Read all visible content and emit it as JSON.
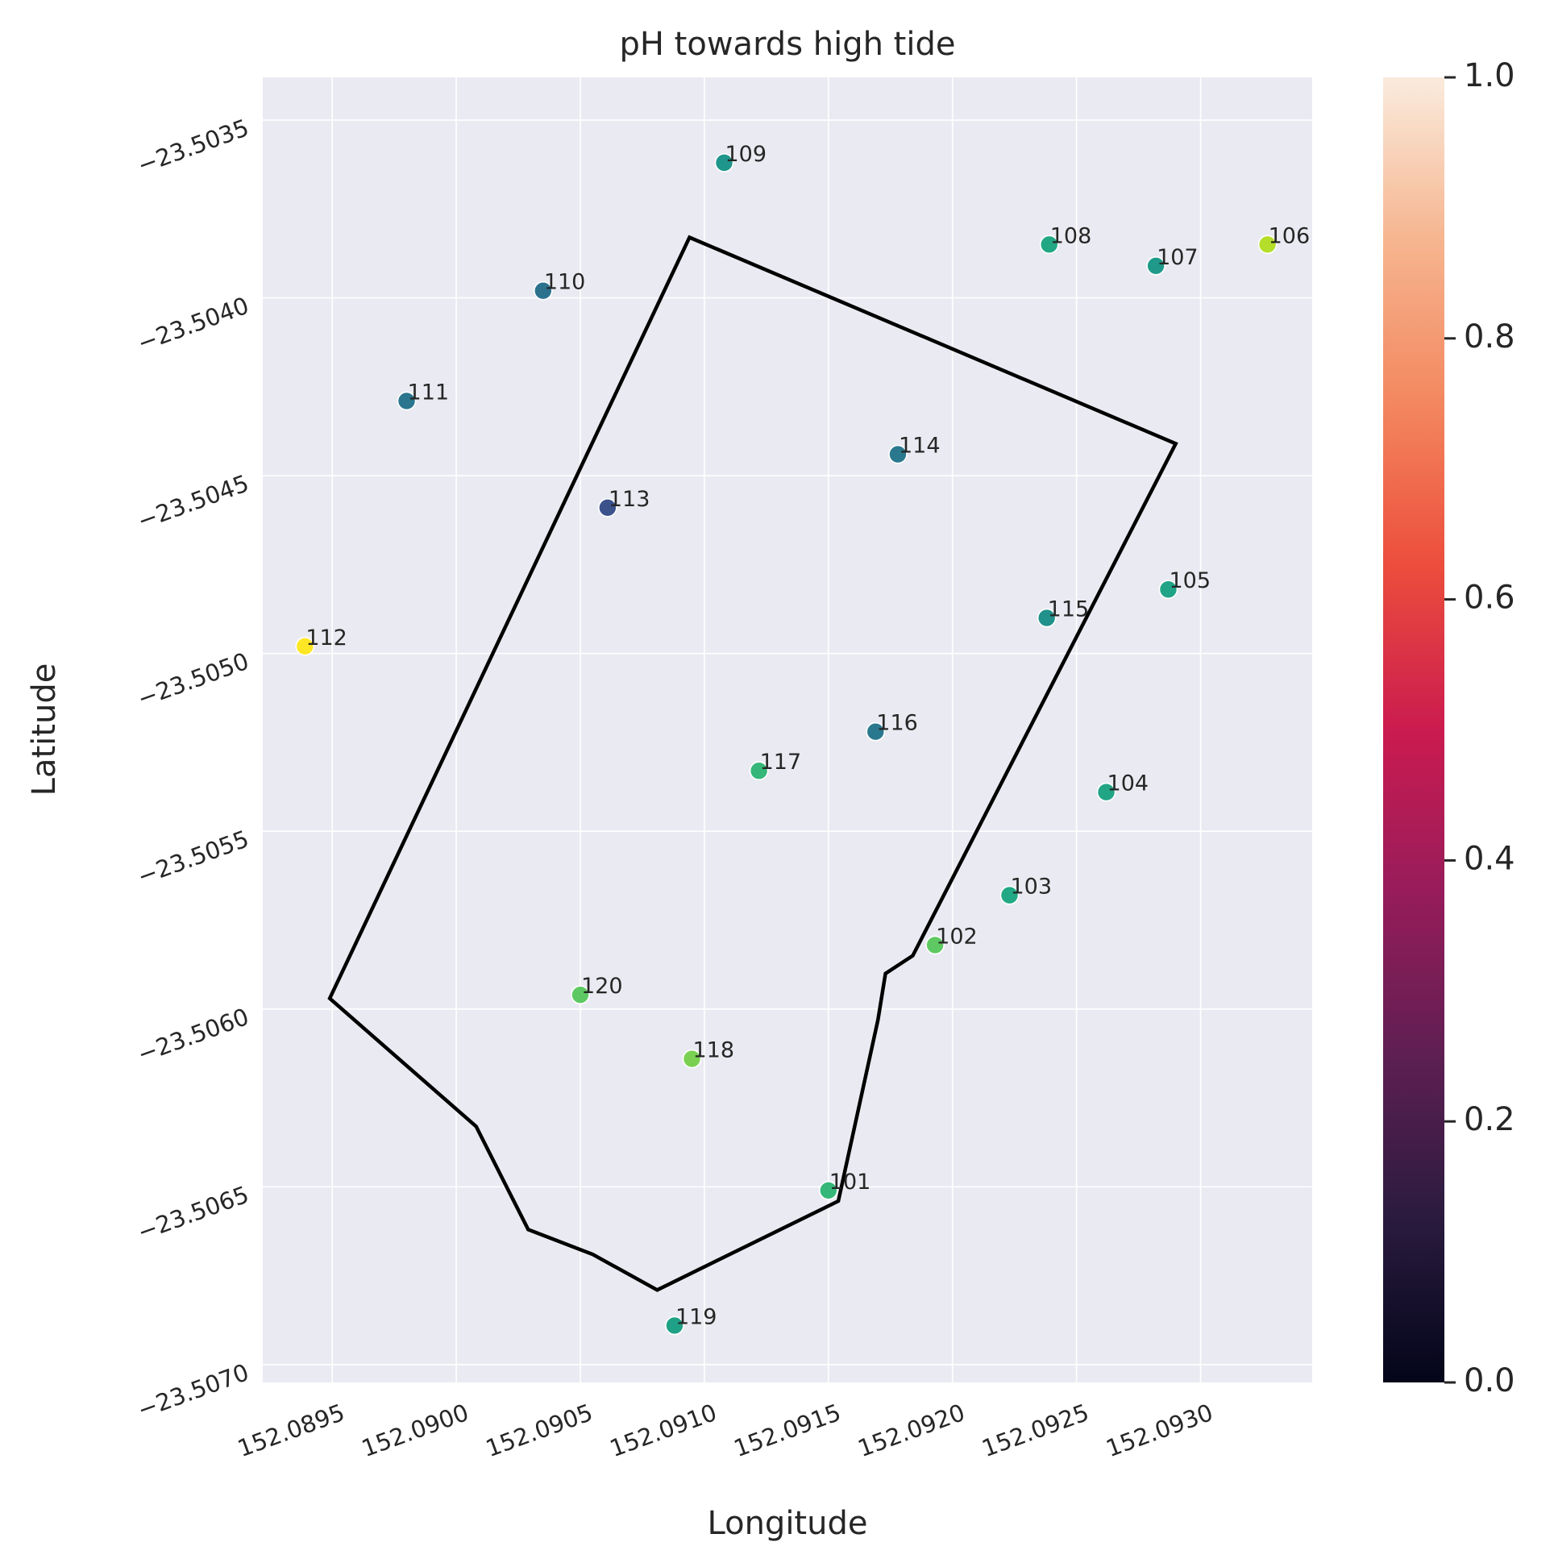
{
  "chart_data": {
    "type": "scatter",
    "title": "pH towards high tide",
    "xlabel": "Longitude",
    "ylabel": "Latitude",
    "xlim": [
      152.08922,
      152.09345
    ],
    "ylim": [
      -23.50705,
      -23.50338
    ],
    "x_ticks": [
      "152.0895",
      "152.0900",
      "152.0905",
      "152.0910",
      "152.0915",
      "152.0920",
      "152.0925",
      "152.0930"
    ],
    "x_tick_values": [
      152.0895,
      152.09,
      152.0905,
      152.091,
      152.0915,
      152.092,
      152.0925,
      152.093
    ],
    "y_ticks": [
      "−23.5035",
      "−23.5040",
      "−23.5045",
      "−23.5050",
      "−23.5055",
      "−23.5060",
      "−23.5065",
      "−23.5070"
    ],
    "y_tick_values": [
      -23.5035,
      -23.504,
      -23.5045,
      -23.505,
      -23.5055,
      -23.506,
      -23.5065,
      -23.507
    ],
    "grid": true,
    "background_color": "#eaeaf2",
    "polygon_color": "#000000",
    "points": [
      {
        "label": "101",
        "lon": 152.0915,
        "lat": -23.50651,
        "color": "#35b779"
      },
      {
        "label": "102",
        "lon": 152.09193,
        "lat": -23.50582,
        "color": "#5ec962"
      },
      {
        "label": "103",
        "lon": 152.09223,
        "lat": -23.50568,
        "color": "#22a884"
      },
      {
        "label": "104",
        "lon": 152.09262,
        "lat": -23.50539,
        "color": "#21a585"
      },
      {
        "label": "105",
        "lon": 152.09287,
        "lat": -23.50482,
        "color": "#20a386"
      },
      {
        "label": "106",
        "lon": 152.09327,
        "lat": -23.50385,
        "color": "#b5de2b"
      },
      {
        "label": "107",
        "lon": 152.09282,
        "lat": -23.50391,
        "color": "#1f9a8a"
      },
      {
        "label": "108",
        "lon": 152.09239,
        "lat": -23.50385,
        "color": "#22a785"
      },
      {
        "label": "109",
        "lon": 152.09108,
        "lat": -23.50362,
        "color": "#1f968b"
      },
      {
        "label": "110",
        "lon": 152.09035,
        "lat": -23.50398,
        "color": "#2c728e"
      },
      {
        "label": "111",
        "lon": 152.0898,
        "lat": -23.50429,
        "color": "#2b758e"
      },
      {
        "label": "112",
        "lon": 152.08939,
        "lat": -23.50498,
        "color": "#fde725"
      },
      {
        "label": "113",
        "lon": 152.09061,
        "lat": -23.50459,
        "color": "#3b528b"
      },
      {
        "label": "114",
        "lon": 152.09178,
        "lat": -23.50444,
        "color": "#2a788e"
      },
      {
        "label": "115",
        "lon": 152.09238,
        "lat": -23.5049,
        "color": "#21918c"
      },
      {
        "label": "116",
        "lon": 152.09169,
        "lat": -23.50522,
        "color": "#2a788e"
      },
      {
        "label": "117",
        "lon": 152.09122,
        "lat": -23.50533,
        "color": "#35b779"
      },
      {
        "label": "118",
        "lon": 152.09095,
        "lat": -23.50614,
        "color": "#7ad151"
      },
      {
        "label": "119",
        "lon": 152.09088,
        "lat": -23.50689,
        "color": "#1fa187"
      },
      {
        "label": "120",
        "lon": 152.0905,
        "lat": -23.50596,
        "color": "#5ec962"
      }
    ],
    "polygon": [
      [
        152.09094,
        -23.50383
      ],
      [
        152.0929,
        -23.50441
      ],
      [
        152.09184,
        -23.50585
      ],
      [
        152.09173,
        -23.5059
      ],
      [
        152.0917,
        -23.50603
      ],
      [
        152.09154,
        -23.50654
      ],
      [
        152.09081,
        -23.50679
      ],
      [
        152.09055,
        -23.50669
      ],
      [
        152.09029,
        -23.50662
      ],
      [
        152.09008,
        -23.50633
      ],
      [
        152.08949,
        -23.50597
      ]
    ],
    "colorbar": {
      "ticks": [
        "0.0",
        "0.2",
        "0.4",
        "0.6",
        "0.8",
        "1.0"
      ],
      "tick_values": [
        0,
        0.2,
        0.4,
        0.6,
        0.8,
        1.0
      ],
      "range": [
        0,
        1
      ],
      "colormap": "rocket",
      "stops": [
        "#03051a",
        "#2a1b3e",
        "#5e1f52",
        "#971c5b",
        "#cb1b4f",
        "#ec4d3c",
        "#f3875f",
        "#f6b58f",
        "#faebdd"
      ]
    }
  }
}
